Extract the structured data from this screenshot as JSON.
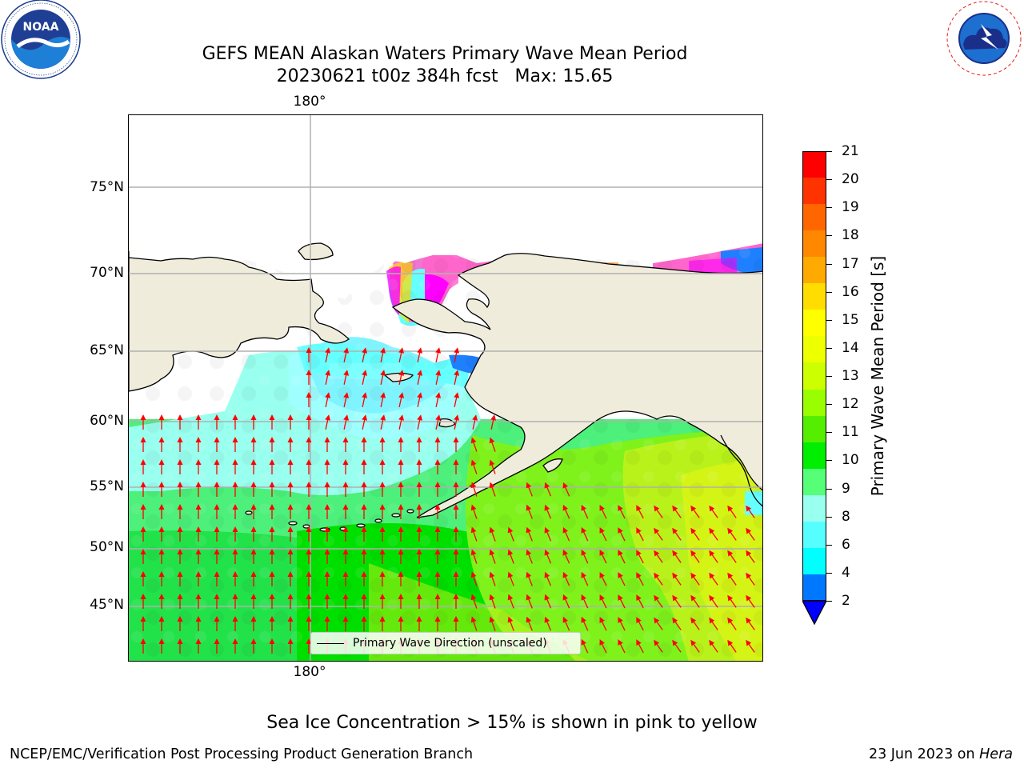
{
  "title": {
    "line1": "GEFS MEAN Alaskan Waters Primary Wave Mean Period",
    "line2": "20230621 t00z 384h fcst   Max: 15.65"
  },
  "logos": {
    "left": {
      "name": "NOAA",
      "icon": "noaa-logo"
    },
    "right": {
      "name": "National Weather Service",
      "icon": "nws-logo"
    }
  },
  "map": {
    "lat_labels": [
      "75°N",
      "70°N",
      "65°N",
      "60°N",
      "55°N",
      "50°N",
      "45°N"
    ],
    "lon_label_top": "180°",
    "lon_label_bottom": "180°",
    "legend": "Primary Wave Direction (unscaled)",
    "colors": {
      "land": "#efecdc",
      "coast": "#000000",
      "grid": "#b0b0b0",
      "arrow": "#ff0000",
      "ice_pink": "#ff66cc",
      "ice_magenta": "#ff00ff",
      "ice_yellow": "#ffee00"
    }
  },
  "colorbar": {
    "label": "Primary Wave Mean Period [s]",
    "ticks": [
      "21",
      "20",
      "19",
      "18",
      "17",
      "16",
      "15",
      "14",
      "13",
      "12",
      "11",
      "10",
      "9",
      "8",
      "6",
      "4",
      "2"
    ],
    "colors": [
      "#ff0000",
      "#ff3300",
      "#ff6600",
      "#ff8800",
      "#ffaa00",
      "#ffdd00",
      "#ffff00",
      "#eeff00",
      "#ccff00",
      "#99ff00",
      "#55ee00",
      "#00ee00",
      "#55ff77",
      "#99ffee",
      "#55ffff",
      "#00ffff",
      "#0077ff"
    ],
    "extend_color": "#0000ff"
  },
  "caption": "Sea Ice Concentration > 15% is shown in pink to yellow",
  "footer": {
    "left": "NCEP/EMC/Verification Post Processing Product Generation Branch",
    "right_prefix": "23 Jun 2023 on ",
    "right_host": "Hera"
  }
}
